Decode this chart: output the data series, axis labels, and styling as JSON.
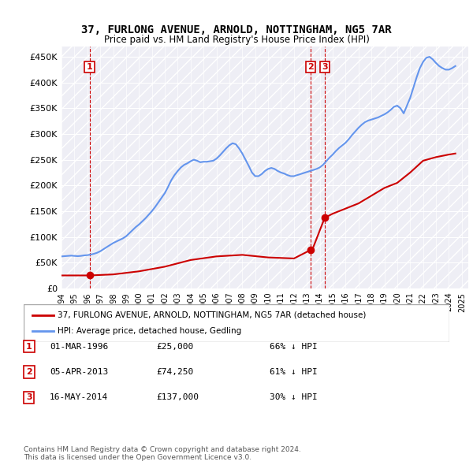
{
  "title": "37, FURLONG AVENUE, ARNOLD, NOTTINGHAM, NG5 7AR",
  "subtitle": "Price paid vs. HM Land Registry's House Price Index (HPI)",
  "hpi_color": "#6495ED",
  "price_color": "#CC0000",
  "vline_color": "#CC0000",
  "background_hatch_color": "#E8E8F0",
  "ylabel_ticks": [
    "£0",
    "£50K",
    "£100K",
    "£150K",
    "£200K",
    "£250K",
    "£300K",
    "£350K",
    "£400K",
    "£450K"
  ],
  "ytick_values": [
    0,
    50000,
    100000,
    150000,
    200000,
    250000,
    300000,
    350000,
    400000,
    450000
  ],
  "ylim": [
    0,
    470000
  ],
  "xlim_start": 1994.0,
  "xlim_end": 2025.5,
  "purchases": [
    {
      "date": 1996.17,
      "price": 25000,
      "label": "1",
      "hpi_pct": 66
    },
    {
      "date": 2013.27,
      "price": 74250,
      "label": "2",
      "hpi_pct": 61
    },
    {
      "date": 2014.38,
      "price": 137000,
      "label": "3",
      "hpi_pct": 30
    }
  ],
  "legend_entries": [
    {
      "label": "37, FURLONG AVENUE, ARNOLD, NOTTINGHAM, NG5 7AR (detached house)",
      "color": "#CC0000"
    },
    {
      "label": "HPI: Average price, detached house, Gedling",
      "color": "#6495ED"
    }
  ],
  "table_rows": [
    {
      "num": "1",
      "date": "01-MAR-1996",
      "price": "£25,000",
      "hpi": "66% ↓ HPI"
    },
    {
      "num": "2",
      "date": "05-APR-2013",
      "price": "£74,250",
      "hpi": "61% ↓ HPI"
    },
    {
      "num": "3",
      "date": "16-MAY-2014",
      "price": "£137,000",
      "hpi": "30% ↓ HPI"
    }
  ],
  "footnote": "Contains HM Land Registry data © Crown copyright and database right 2024.\nThis data is licensed under the Open Government Licence v3.0.",
  "hpi_data": {
    "years": [
      1994.0,
      1994.25,
      1994.5,
      1994.75,
      1995.0,
      1995.25,
      1995.5,
      1995.75,
      1996.0,
      1996.25,
      1996.5,
      1996.75,
      1997.0,
      1997.25,
      1997.5,
      1997.75,
      1998.0,
      1998.25,
      1998.5,
      1998.75,
      1999.0,
      1999.25,
      1999.5,
      1999.75,
      2000.0,
      2000.25,
      2000.5,
      2000.75,
      2001.0,
      2001.25,
      2001.5,
      2001.75,
      2002.0,
      2002.25,
      2002.5,
      2002.75,
      2003.0,
      2003.25,
      2003.5,
      2003.75,
      2004.0,
      2004.25,
      2004.5,
      2004.75,
      2005.0,
      2005.25,
      2005.5,
      2005.75,
      2006.0,
      2006.25,
      2006.5,
      2006.75,
      2007.0,
      2007.25,
      2007.5,
      2007.75,
      2008.0,
      2008.25,
      2008.5,
      2008.75,
      2009.0,
      2009.25,
      2009.5,
      2009.75,
      2010.0,
      2010.25,
      2010.5,
      2010.75,
      2011.0,
      2011.25,
      2011.5,
      2011.75,
      2012.0,
      2012.25,
      2012.5,
      2012.75,
      2013.0,
      2013.25,
      2013.5,
      2013.75,
      2014.0,
      2014.25,
      2014.5,
      2014.75,
      2015.0,
      2015.25,
      2015.5,
      2015.75,
      2016.0,
      2016.25,
      2016.5,
      2016.75,
      2017.0,
      2017.25,
      2017.5,
      2017.75,
      2018.0,
      2018.25,
      2018.5,
      2018.75,
      2019.0,
      2019.25,
      2019.5,
      2019.75,
      2020.0,
      2020.25,
      2020.5,
      2020.75,
      2021.0,
      2021.25,
      2021.5,
      2021.75,
      2022.0,
      2022.25,
      2022.5,
      2022.75,
      2023.0,
      2023.25,
      2023.5,
      2023.75,
      2024.0,
      2024.25,
      2024.5
    ],
    "values": [
      62000,
      62500,
      63000,
      63500,
      63000,
      62500,
      63000,
      64000,
      64500,
      65500,
      67000,
      69000,
      72000,
      76000,
      80000,
      84000,
      88000,
      91000,
      94000,
      97000,
      101000,
      107000,
      113000,
      119000,
      124000,
      130000,
      136000,
      143000,
      150000,
      158000,
      167000,
      176000,
      185000,
      197000,
      210000,
      220000,
      228000,
      235000,
      240000,
      243000,
      247000,
      250000,
      248000,
      245000,
      246000,
      246000,
      247000,
      248000,
      252000,
      258000,
      265000,
      272000,
      278000,
      282000,
      280000,
      272000,
      262000,
      250000,
      238000,
      225000,
      218000,
      218000,
      222000,
      228000,
      232000,
      234000,
      232000,
      228000,
      225000,
      223000,
      220000,
      218000,
      218000,
      220000,
      222000,
      224000,
      226000,
      228000,
      230000,
      232000,
      235000,
      240000,
      247000,
      254000,
      260000,
      267000,
      273000,
      278000,
      283000,
      290000,
      298000,
      305000,
      312000,
      318000,
      323000,
      326000,
      328000,
      330000,
      332000,
      335000,
      338000,
      342000,
      347000,
      353000,
      355000,
      350000,
      340000,
      355000,
      370000,
      390000,
      410000,
      428000,
      440000,
      448000,
      450000,
      445000,
      438000,
      432000,
      428000,
      425000,
      425000,
      428000,
      432000
    ]
  },
  "price_line_data": {
    "years": [
      1994.0,
      1996.0,
      1996.17,
      1998.0,
      2000.0,
      2002.0,
      2004.0,
      2006.0,
      2008.0,
      2010.0,
      2012.0,
      2013.27,
      2013.5,
      2014.38,
      2015.0,
      2016.0,
      2017.0,
      2018.0,
      2019.0,
      2020.0,
      2021.0,
      2022.0,
      2023.0,
      2024.0,
      2024.5
    ],
    "values": [
      25000,
      25000,
      25000,
      27000,
      33000,
      42000,
      55000,
      62000,
      65000,
      60000,
      58000,
      74250,
      80000,
      137000,
      145000,
      155000,
      165000,
      180000,
      195000,
      205000,
      225000,
      248000,
      255000,
      260000,
      262000
    ]
  }
}
